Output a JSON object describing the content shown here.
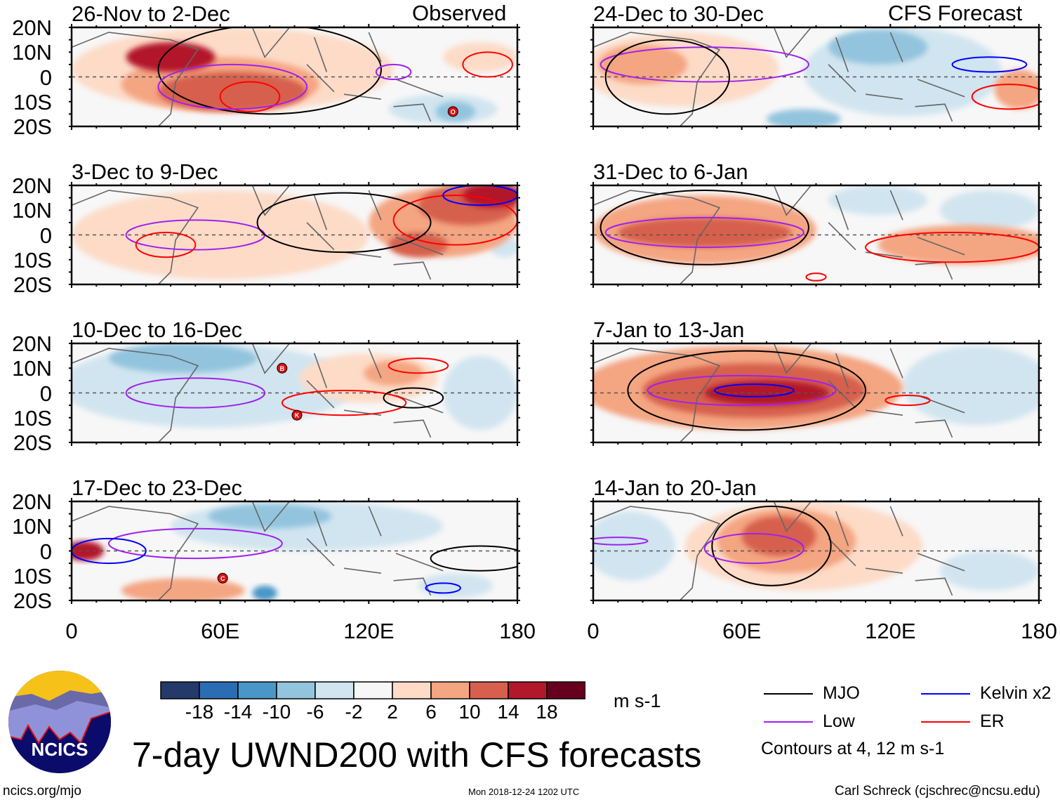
{
  "title": "7-day UWND200 with CFS forecasts",
  "observed_label": "Observed",
  "forecast_label": "CFS Forecast",
  "lat_labels": [
    "20N",
    "10N",
    "0",
    "10S",
    "20S"
  ],
  "lon_labels": [
    "0",
    "60E",
    "120E",
    "180"
  ],
  "colorbar": {
    "units": "m s-1",
    "ticks": [
      "-18",
      "-14",
      "-10",
      "-6",
      "-2",
      "2",
      "6",
      "10",
      "14",
      "18"
    ],
    "colors": [
      "#233a6b",
      "#2a6db3",
      "#4a96c8",
      "#93c4de",
      "#d1e5f0",
      "#f7f7f7",
      "#fddbc7",
      "#f4a582",
      "#d6604d",
      "#b2182b",
      "#67001f"
    ]
  },
  "legend": {
    "items": [
      {
        "label": "MJO",
        "color": "#000000"
      },
      {
        "label": "Kelvin x2",
        "color": "#0000ff"
      },
      {
        "label": "Low",
        "color": "#a020f0"
      },
      {
        "label": "ER",
        "color": "#ff0000"
      }
    ],
    "note": "Contours at 4, 12 m s-1"
  },
  "footer": {
    "url": "ncics.org/mjo",
    "timestamp": "Mon 2018-12-24 1202 UTC",
    "author": "Carl Schreck (cjschrec@ncsu.edu)"
  },
  "logo_text": "NCICS",
  "chart_data": {
    "type": "heatmap",
    "variable": "200-hPa zonal wind anomaly",
    "lon_range": [
      0,
      180
    ],
    "lat_range": [
      -20,
      20
    ],
    "panels": [
      {
        "title": "26-Nov to 2-Dec",
        "col": 0,
        "row": 0,
        "shading": [
          {
            "lon": 65,
            "lat": 3,
            "rlon": 65,
            "rlat": 17,
            "v": 4
          },
          {
            "lon": 60,
            "lat": -3,
            "rlon": 40,
            "rlat": 11,
            "v": 8
          },
          {
            "lon": 65,
            "lat": -6,
            "rlon": 30,
            "rlat": 8,
            "v": 12
          },
          {
            "lon": 40,
            "lat": 8,
            "rlon": 18,
            "rlat": 6,
            "v": 16
          },
          {
            "lon": 165,
            "lat": 8,
            "rlon": 15,
            "rlat": 6,
            "v": 4
          },
          {
            "lon": 150,
            "lat": -13,
            "rlon": 22,
            "rlat": 6,
            "v": -4
          },
          {
            "lon": 155,
            "lat": -14,
            "rlon": 8,
            "rlat": 4,
            "v": -8
          }
        ],
        "contours": [
          {
            "type": "MJO",
            "lon": 80,
            "lat": 3,
            "rlon": 45,
            "rlat": 18
          },
          {
            "type": "ER",
            "lon": 72,
            "lat": -8,
            "rlon": 12,
            "rlat": 6
          },
          {
            "type": "ER",
            "lon": 168,
            "lat": 5,
            "rlon": 10,
            "rlat": 5
          },
          {
            "type": "Low",
            "lon": 65,
            "lat": -4,
            "rlon": 30,
            "rlat": 9
          },
          {
            "type": "Low",
            "lon": 130,
            "lat": 2,
            "rlon": 7,
            "rlat": 3
          }
        ],
        "markers": [
          {
            "lon": 154,
            "lat": -14,
            "letter": "O"
          }
        ]
      },
      {
        "title": "3-Dec to 9-Dec",
        "col": 0,
        "row": 1,
        "shading": [
          {
            "lon": 60,
            "lat": 0,
            "rlon": 60,
            "rlat": 18,
            "v": 4
          },
          {
            "lon": 150,
            "lat": 5,
            "rlon": 30,
            "rlat": 14,
            "v": 6
          },
          {
            "lon": 160,
            "lat": 12,
            "rlon": 20,
            "rlat": 8,
            "v": 10
          },
          {
            "lon": 170,
            "lat": 16,
            "rlon": 12,
            "rlat": 5,
            "v": 16
          },
          {
            "lon": 140,
            "lat": -4,
            "rlon": 12,
            "rlat": 5,
            "v": 10
          },
          {
            "lon": 175,
            "lat": -5,
            "rlon": 6,
            "rlat": 4,
            "v": -4
          }
        ],
        "contours": [
          {
            "type": "Low",
            "lon": 50,
            "lat": 0,
            "rlon": 28,
            "rlat": 6
          },
          {
            "type": "ER",
            "lon": 38,
            "lat": -4,
            "rlon": 12,
            "rlat": 5
          },
          {
            "type": "ER",
            "lon": 155,
            "lat": 6,
            "rlon": 25,
            "rlat": 10
          },
          {
            "type": "MJO",
            "lon": 110,
            "lat": 5,
            "rlon": 35,
            "rlat": 12
          },
          {
            "type": "Kelvin",
            "lon": 165,
            "lat": 16,
            "rlon": 15,
            "rlat": 4
          }
        ],
        "markers": []
      },
      {
        "title": "10-Dec to 16-Dec",
        "col": 0,
        "row": 2,
        "shading": [
          {
            "lon": 55,
            "lat": 3,
            "rlon": 60,
            "rlat": 17,
            "v": -4
          },
          {
            "lon": 45,
            "lat": 14,
            "rlon": 30,
            "rlat": 6,
            "v": -8
          },
          {
            "lon": 120,
            "lat": 6,
            "rlon": 28,
            "rlat": 10,
            "v": 4
          },
          {
            "lon": 130,
            "lat": 8,
            "rlon": 12,
            "rlat": 5,
            "v": 6
          },
          {
            "lon": 165,
            "lat": 0,
            "rlon": 15,
            "rlat": 15,
            "v": -4
          }
        ],
        "contours": [
          {
            "type": "Low",
            "lon": 50,
            "lat": 0,
            "rlon": 28,
            "rlat": 6
          },
          {
            "type": "ER",
            "lon": 110,
            "lat": -4,
            "rlon": 25,
            "rlat": 5
          },
          {
            "type": "ER",
            "lon": 140,
            "lat": 11,
            "rlon": 12,
            "rlat": 3
          },
          {
            "type": "MJO",
            "lon": 138,
            "lat": -2,
            "rlon": 12,
            "rlat": 4
          }
        ],
        "markers": [
          {
            "lon": 85,
            "lat": 10,
            "letter": "B"
          },
          {
            "lon": 91,
            "lat": -9,
            "letter": "K"
          }
        ]
      },
      {
        "title": "17-Dec to 23-Dec",
        "col": 0,
        "row": 3,
        "shading": [
          {
            "lon": 95,
            "lat": 10,
            "rlon": 55,
            "rlat": 10,
            "v": -4
          },
          {
            "lon": 80,
            "lat": 14,
            "rlon": 25,
            "rlat": 5,
            "v": -8
          },
          {
            "lon": 5,
            "lat": 0,
            "rlon": 8,
            "rlat": 4,
            "v": 14
          },
          {
            "lon": 45,
            "lat": -16,
            "rlon": 25,
            "rlat": 5,
            "v": 8
          },
          {
            "lon": 78,
            "lat": -17,
            "rlon": 5,
            "rlat": 3,
            "v": -14
          },
          {
            "lon": 155,
            "lat": -14,
            "rlon": 15,
            "rlat": 5,
            "v": -4
          }
        ],
        "contours": [
          {
            "type": "Low",
            "lon": 50,
            "lat": 3,
            "rlon": 35,
            "rlat": 6
          },
          {
            "type": "MJO",
            "lon": 165,
            "lat": -3,
            "rlon": 20,
            "rlat": 5
          },
          {
            "type": "Kelvin",
            "lon": 150,
            "lat": -15,
            "rlon": 7,
            "rlat": 2
          },
          {
            "type": "Kelvin",
            "lon": 15,
            "lat": 0,
            "rlon": 15,
            "rlat": 5
          }
        ],
        "markers": [
          {
            "lon": 61,
            "lat": -11,
            "letter": "C"
          }
        ]
      },
      {
        "title": "24-Dec to 30-Dec",
        "label": "CFS Forecast",
        "col": 1,
        "row": 0,
        "shading": [
          {
            "lon": 35,
            "lat": 3,
            "rlon": 40,
            "rlat": 15,
            "v": 4
          },
          {
            "lon": 20,
            "lat": 5,
            "rlon": 18,
            "rlat": 8,
            "v": 8
          },
          {
            "lon": 125,
            "lat": 2,
            "rlon": 40,
            "rlat": 18,
            "v": -4
          },
          {
            "lon": 115,
            "lat": 12,
            "rlon": 20,
            "rlat": 7,
            "v": -8
          },
          {
            "lon": 85,
            "lat": -17,
            "rlon": 15,
            "rlat": 4,
            "v": -10
          },
          {
            "lon": 172,
            "lat": -5,
            "rlon": 10,
            "rlat": 8,
            "v": 6
          }
        ],
        "contours": [
          {
            "type": "Kelvin",
            "lon": 160,
            "lat": 5,
            "rlon": 15,
            "rlat": 3
          },
          {
            "type": "Low",
            "lon": 45,
            "lat": 5,
            "rlon": 42,
            "rlat": 7
          },
          {
            "type": "ER",
            "lon": 168,
            "lat": -8,
            "rlon": 15,
            "rlat": 5
          },
          {
            "type": "MJO",
            "lon": 30,
            "lat": 0,
            "rlon": 25,
            "rlat": 15
          }
        ],
        "markers": []
      },
      {
        "title": "31-Dec to 6-Jan",
        "col": 1,
        "row": 1,
        "shading": [
          {
            "lon": 45,
            "lat": 2,
            "rlon": 45,
            "rlat": 14,
            "v": 6
          },
          {
            "lon": 45,
            "lat": 1,
            "rlon": 35,
            "rlat": 6,
            "v": 12
          },
          {
            "lon": 115,
            "lat": 14,
            "rlon": 20,
            "rlat": 6,
            "v": -6
          },
          {
            "lon": 150,
            "lat": -4,
            "rlon": 35,
            "rlat": 8,
            "v": 6
          },
          {
            "lon": 160,
            "lat": 10,
            "rlon": 20,
            "rlat": 8,
            "v": -4
          }
        ],
        "contours": [
          {
            "type": "MJO",
            "lon": 45,
            "lat": 3,
            "rlon": 42,
            "rlat": 15
          },
          {
            "type": "Low",
            "lon": 45,
            "lat": 1,
            "rlon": 40,
            "rlat": 6
          },
          {
            "type": "ER",
            "lon": 145,
            "lat": -5,
            "rlon": 35,
            "rlat": 6
          },
          {
            "type": "ER",
            "lon": 90,
            "lat": -17,
            "rlon": 4,
            "rlat": 1.5
          }
        ],
        "markers": []
      },
      {
        "title": "7-Jan to 13-Jan",
        "col": 1,
        "row": 2,
        "shading": [
          {
            "lon": 60,
            "lat": 2,
            "rlon": 65,
            "rlat": 17,
            "v": 6
          },
          {
            "lon": 65,
            "lat": 1,
            "rlon": 45,
            "rlat": 11,
            "v": 12
          },
          {
            "lon": 70,
            "lat": 0,
            "rlon": 25,
            "rlat": 5,
            "v": 17
          },
          {
            "lon": 155,
            "lat": 3,
            "rlon": 30,
            "rlat": 16,
            "v": -4
          }
        ],
        "contours": [
          {
            "type": "MJO",
            "lon": 62,
            "lat": 1,
            "rlon": 48,
            "rlat": 16
          },
          {
            "type": "Low",
            "lon": 60,
            "lat": 1,
            "rlon": 38,
            "rlat": 6
          },
          {
            "type": "Kelvin",
            "lon": 65,
            "lat": 1,
            "rlon": 16,
            "rlat": 2.5
          },
          {
            "type": "ER",
            "lon": 127,
            "lat": -3,
            "rlon": 9,
            "rlat": 2
          }
        ],
        "markers": []
      },
      {
        "title": "14-Jan to 20-Jan",
        "col": 1,
        "row": 3,
        "shading": [
          {
            "lon": 85,
            "lat": 2,
            "rlon": 48,
            "rlat": 18,
            "v": 4
          },
          {
            "lon": 78,
            "lat": 4,
            "rlon": 28,
            "rlat": 13,
            "v": 8
          },
          {
            "lon": 75,
            "lat": 6,
            "rlon": 15,
            "rlat": 8,
            "v": 12
          },
          {
            "lon": 15,
            "lat": 2,
            "rlon": 18,
            "rlat": 14,
            "v": -4
          },
          {
            "lon": 160,
            "lat": -8,
            "rlon": 20,
            "rlat": 8,
            "v": -4
          }
        ],
        "contours": [
          {
            "type": "MJO",
            "lon": 72,
            "lat": 2,
            "rlon": 24,
            "rlat": 16
          },
          {
            "type": "Low",
            "lon": 65,
            "lat": 1,
            "rlon": 20,
            "rlat": 6
          },
          {
            "type": "Low",
            "lon": 10,
            "lat": 4,
            "rlon": 12,
            "rlat": 1.5
          }
        ],
        "markers": []
      }
    ]
  }
}
